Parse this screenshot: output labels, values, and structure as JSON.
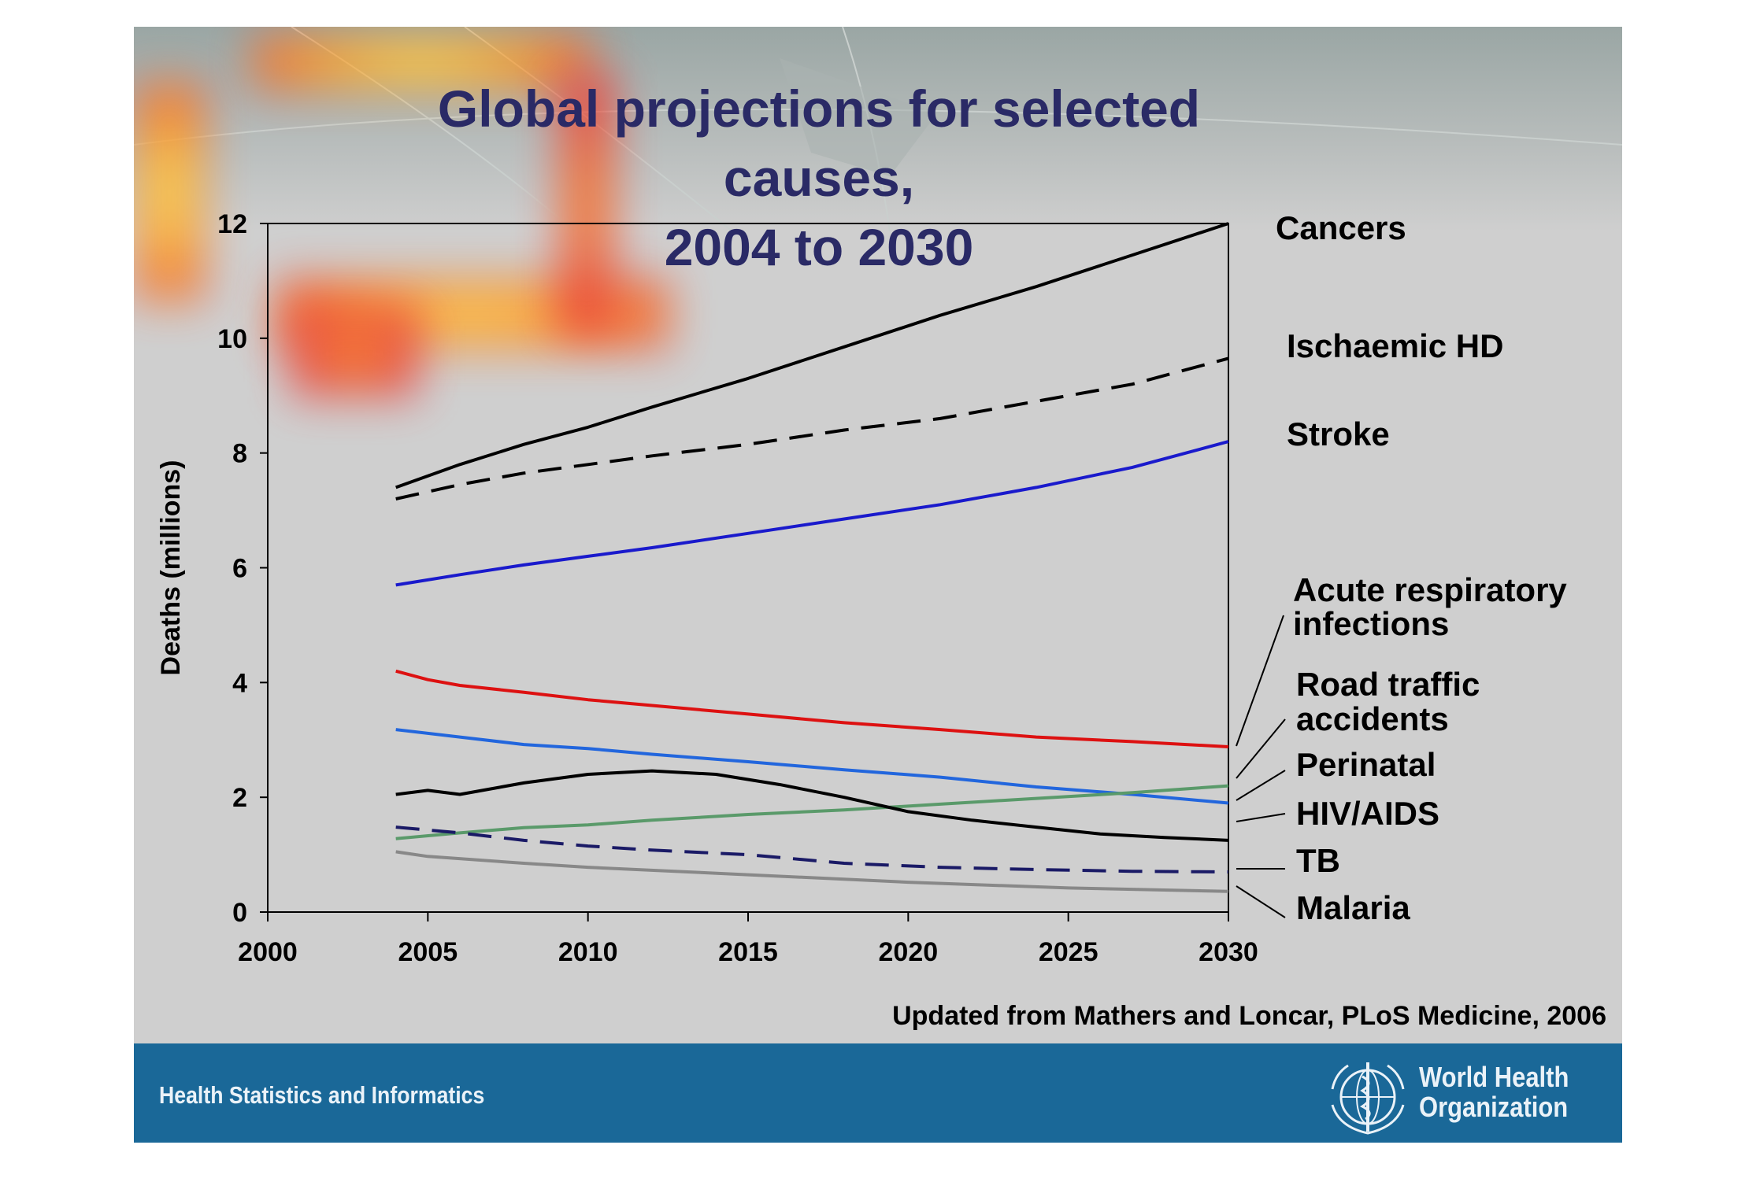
{
  "title_line1": "Global projections for selected causes,",
  "title_line2": "2004 to 2030",
  "source": "Updated from Mathers and Loncar, PLoS Medicine, 2006",
  "footer": {
    "left_text": "Health Statistics and Informatics",
    "org_line1": "World Health",
    "org_line2": "Organization",
    "logo": "who-emblem-icon"
  },
  "colors": {
    "footer_bg": "#1a6898",
    "title": "#2a2a66",
    "slide_bg": "#cfcfcf"
  },
  "chart_data": {
    "type": "line",
    "title": "Global projections for selected causes, 2004 to 2030",
    "xlabel": "",
    "ylabel": "Deaths (millions)",
    "xlim": [
      2000,
      2030
    ],
    "ylim": [
      0,
      12
    ],
    "x_ticks": [
      2000,
      2005,
      2010,
      2015,
      2020,
      2025,
      2030
    ],
    "y_ticks": [
      0,
      2,
      4,
      6,
      8,
      10,
      12
    ],
    "grid": false,
    "legend": "labels at right end of lines",
    "series": [
      {
        "name": "Cancers",
        "color": "#000000",
        "dash": false,
        "x": [
          2004,
          2006,
          2008,
          2010,
          2012,
          2015,
          2018,
          2021,
          2024,
          2027,
          2030
        ],
        "y": [
          7.4,
          7.8,
          8.15,
          8.45,
          8.8,
          9.3,
          9.85,
          10.4,
          10.9,
          11.45,
          12.0
        ]
      },
      {
        "name": "Ischaemic HD",
        "color": "#000000",
        "dash": true,
        "x": [
          2004,
          2006,
          2008,
          2010,
          2012,
          2015,
          2018,
          2021,
          2024,
          2027,
          2030
        ],
        "y": [
          7.2,
          7.45,
          7.65,
          7.8,
          7.95,
          8.15,
          8.4,
          8.6,
          8.9,
          9.2,
          9.65
        ]
      },
      {
        "name": "Stroke",
        "color": "#1a1acc",
        "dash": false,
        "x": [
          2004,
          2006,
          2008,
          2010,
          2012,
          2015,
          2018,
          2021,
          2024,
          2027,
          2030
        ],
        "y": [
          5.7,
          5.88,
          6.05,
          6.2,
          6.35,
          6.6,
          6.85,
          7.1,
          7.4,
          7.75,
          8.2
        ]
      },
      {
        "name": "Acute respiratory infections",
        "color": "#dd1111",
        "dash": false,
        "x": [
          2004,
          2005,
          2006,
          2008,
          2010,
          2012,
          2015,
          2018,
          2021,
          2024,
          2027,
          2030
        ],
        "y": [
          4.2,
          4.05,
          3.95,
          3.83,
          3.7,
          3.6,
          3.45,
          3.3,
          3.18,
          3.05,
          2.97,
          2.88
        ]
      },
      {
        "name": "Road traffic accidents",
        "color": "#2266dd",
        "dash": false,
        "x": [
          2004,
          2006,
          2008,
          2010,
          2012,
          2015,
          2018,
          2021,
          2024,
          2027,
          2030
        ],
        "y": [
          3.18,
          3.05,
          2.92,
          2.85,
          2.75,
          2.62,
          2.48,
          2.35,
          2.18,
          2.05,
          1.9
        ]
      },
      {
        "name": "Perinatal",
        "color": "#5a9a6a",
        "dash": false,
        "x": [
          2004,
          2006,
          2008,
          2010,
          2012,
          2015,
          2018,
          2021,
          2024,
          2027,
          2030
        ],
        "y": [
          1.28,
          1.38,
          1.47,
          1.52,
          1.6,
          1.7,
          1.78,
          1.88,
          1.98,
          2.08,
          2.2
        ]
      },
      {
        "name": "HIV/AIDS",
        "color": "#000000",
        "dash": false,
        "x": [
          2004,
          2005,
          2006,
          2008,
          2010,
          2012,
          2014,
          2016,
          2018,
          2020,
          2022,
          2024,
          2026,
          2028,
          2030
        ],
        "y": [
          2.05,
          2.12,
          2.05,
          2.25,
          2.4,
          2.46,
          2.4,
          2.22,
          2.0,
          1.75,
          1.6,
          1.48,
          1.36,
          1.3,
          1.25
        ]
      },
      {
        "name": "TB",
        "color": "#1a1a66",
        "dash": true,
        "x": [
          2004,
          2006,
          2008,
          2010,
          2012,
          2015,
          2018,
          2021,
          2024,
          2027,
          2030
        ],
        "y": [
          1.48,
          1.38,
          1.25,
          1.15,
          1.08,
          1.0,
          0.85,
          0.78,
          0.74,
          0.71,
          0.7
        ]
      },
      {
        "name": "Malaria",
        "color": "#888888",
        "dash": false,
        "x": [
          2004,
          2005,
          2008,
          2010,
          2015,
          2020,
          2025,
          2030
        ],
        "y": [
          1.05,
          0.97,
          0.85,
          0.78,
          0.65,
          0.52,
          0.42,
          0.36
        ]
      }
    ],
    "series_labels": [
      "Cancers",
      "Ischaemic HD",
      "Stroke",
      "Acute respiratory",
      "infections",
      "Road traffic",
      "accidents",
      "Perinatal",
      "HIV/AIDS",
      "TB",
      "Malaria"
    ]
  }
}
